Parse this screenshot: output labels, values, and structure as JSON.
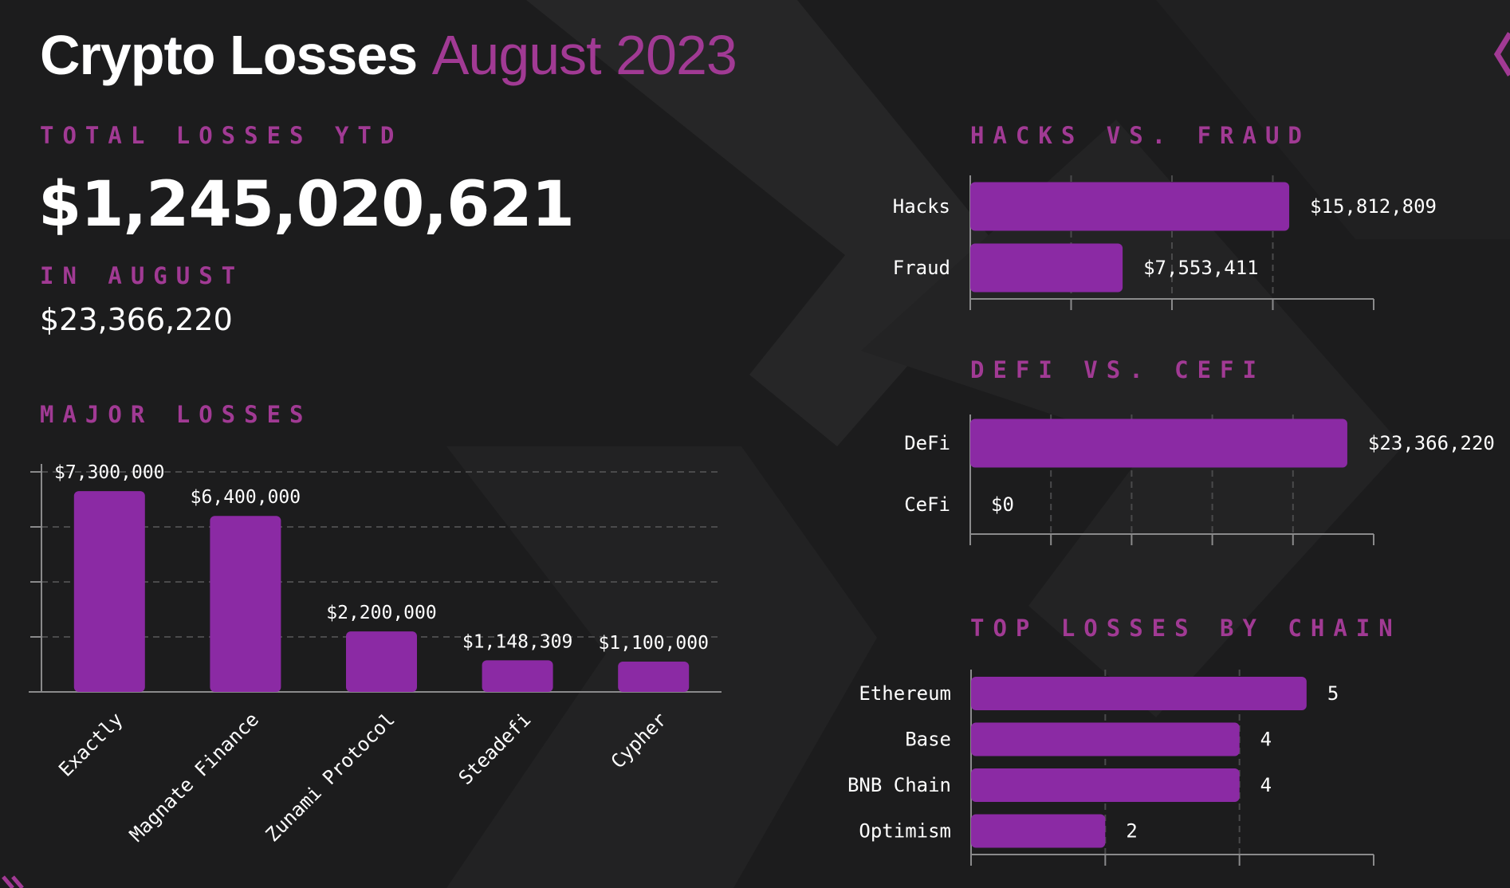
{
  "header": {
    "title_main": "Crypto Losses",
    "title_accent": "August 2023"
  },
  "summary": {
    "total_label": "TOTAL LOSSES YTD",
    "total_value": "$1,245,020,621",
    "month_label": "IN AUGUST",
    "month_value": "$23,366,220"
  },
  "colors": {
    "accent": "#a13a94",
    "bar": "#8b2aa4",
    "background": "#1c1c1d"
  },
  "chart_data": [
    {
      "id": "major",
      "type": "bar",
      "title": "MAJOR LOSSES",
      "categories": [
        "Exactly",
        "Magnate Finance",
        "Zunami Protocol",
        "Steadefi",
        "Cypher"
      ],
      "values": [
        7300000,
        6400000,
        2200000,
        1148309,
        1100000
      ],
      "labels": [
        "$7,300,000",
        "$6,400,000",
        "$2,200,000",
        "$1,148,309",
        "$1,100,000"
      ],
      "ylim": [
        0,
        8000000
      ],
      "grid": true
    },
    {
      "id": "hacks",
      "type": "bar",
      "orientation": "horizontal",
      "title": "HACKS VS. FRAUD",
      "categories": [
        "Hacks",
        "Fraud"
      ],
      "values": [
        15812809,
        7553411
      ],
      "labels": [
        "$15,812,809",
        "$7,553,411"
      ],
      "xlim": [
        0,
        20000000
      ],
      "grid": true
    },
    {
      "id": "defi",
      "type": "bar",
      "orientation": "horizontal",
      "title": "DEFI VS. CEFI",
      "categories": [
        "DeFi",
        "CeFi"
      ],
      "values": [
        23366220,
        0
      ],
      "labels": [
        "$23,366,220",
        "$0"
      ],
      "xlim": [
        0,
        25000000
      ],
      "grid": true
    },
    {
      "id": "chain",
      "type": "bar",
      "orientation": "horizontal",
      "title": "TOP LOSSES BY CHAIN",
      "categories": [
        "Ethereum",
        "Base",
        "BNB Chain",
        "Optimism"
      ],
      "values": [
        5,
        4,
        4,
        2
      ],
      "labels": [
        "5",
        "4",
        "4",
        "2"
      ],
      "xlim": [
        0,
        6
      ],
      "grid": true
    }
  ]
}
